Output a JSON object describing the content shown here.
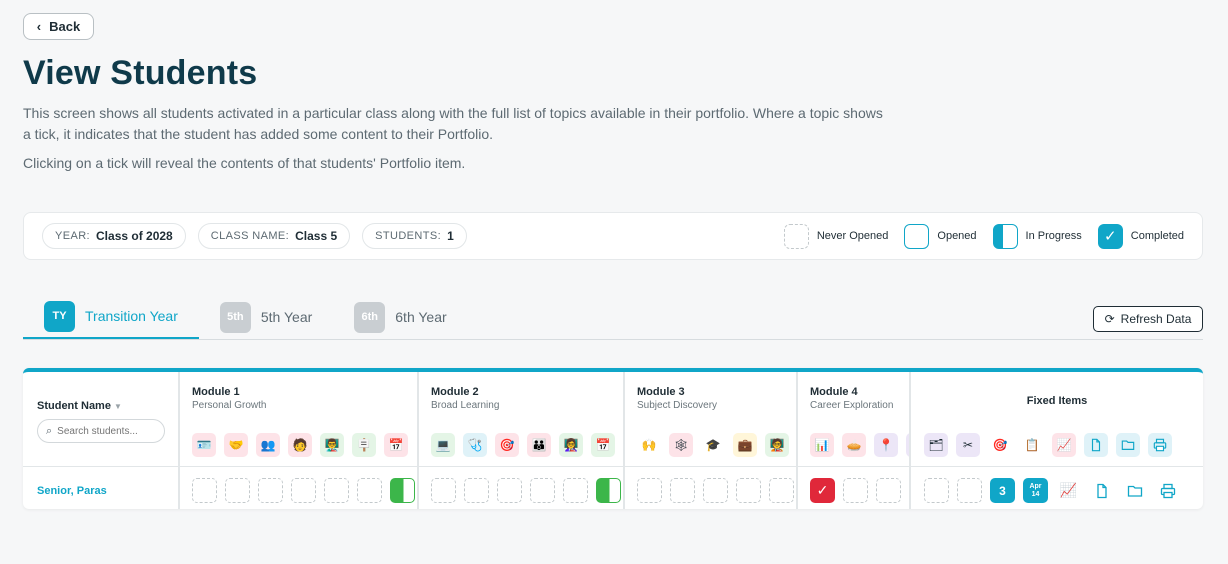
{
  "back": {
    "label": "Back"
  },
  "title": "View Students",
  "description": "This screen shows all students activated in a particular class along with the full list of topics available in their portfolio. Where a topic shows a tick, it indicates that the student has added some content to their Portfolio.",
  "description2": "Clicking on a tick will reveal the contents of that students' Portfolio item.",
  "info": {
    "year_key": "YEAR:",
    "year_val": "Class of 2028",
    "class_key": "CLASS NAME:",
    "class_val": "Class 5",
    "students_key": "STUDENTS:",
    "students_val": "1"
  },
  "legend": {
    "never": "Never Opened",
    "opened": "Opened",
    "progress": "In Progress",
    "completed": "Completed"
  },
  "tabs": [
    {
      "badge": "TY",
      "label": "Transition Year",
      "active": true
    },
    {
      "badge": "5th",
      "label": "5th Year",
      "active": false
    },
    {
      "badge": "6th",
      "label": "6th Year",
      "active": false
    }
  ],
  "refresh": {
    "label": "Refresh Data"
  },
  "table": {
    "name_header": "Student Name",
    "search_placeholder": "Search students...",
    "student": "Senior, Paras",
    "modules": [
      {
        "title": "Module 1",
        "subtitle": "Personal Growth"
      },
      {
        "title": "Module 2",
        "subtitle": "Broad Learning"
      },
      {
        "title": "Module 3",
        "subtitle": "Subject Discovery"
      },
      {
        "title": "Module 4",
        "subtitle": "Career Exploration"
      }
    ],
    "fixed_header": "Fixed Items",
    "fixed_count": "3",
    "fixed_date_month": "Apr",
    "fixed_date_day": "14"
  },
  "colors": {
    "accent": "#10a6c8",
    "green": "#3cb64a",
    "red": "#e0283a"
  }
}
